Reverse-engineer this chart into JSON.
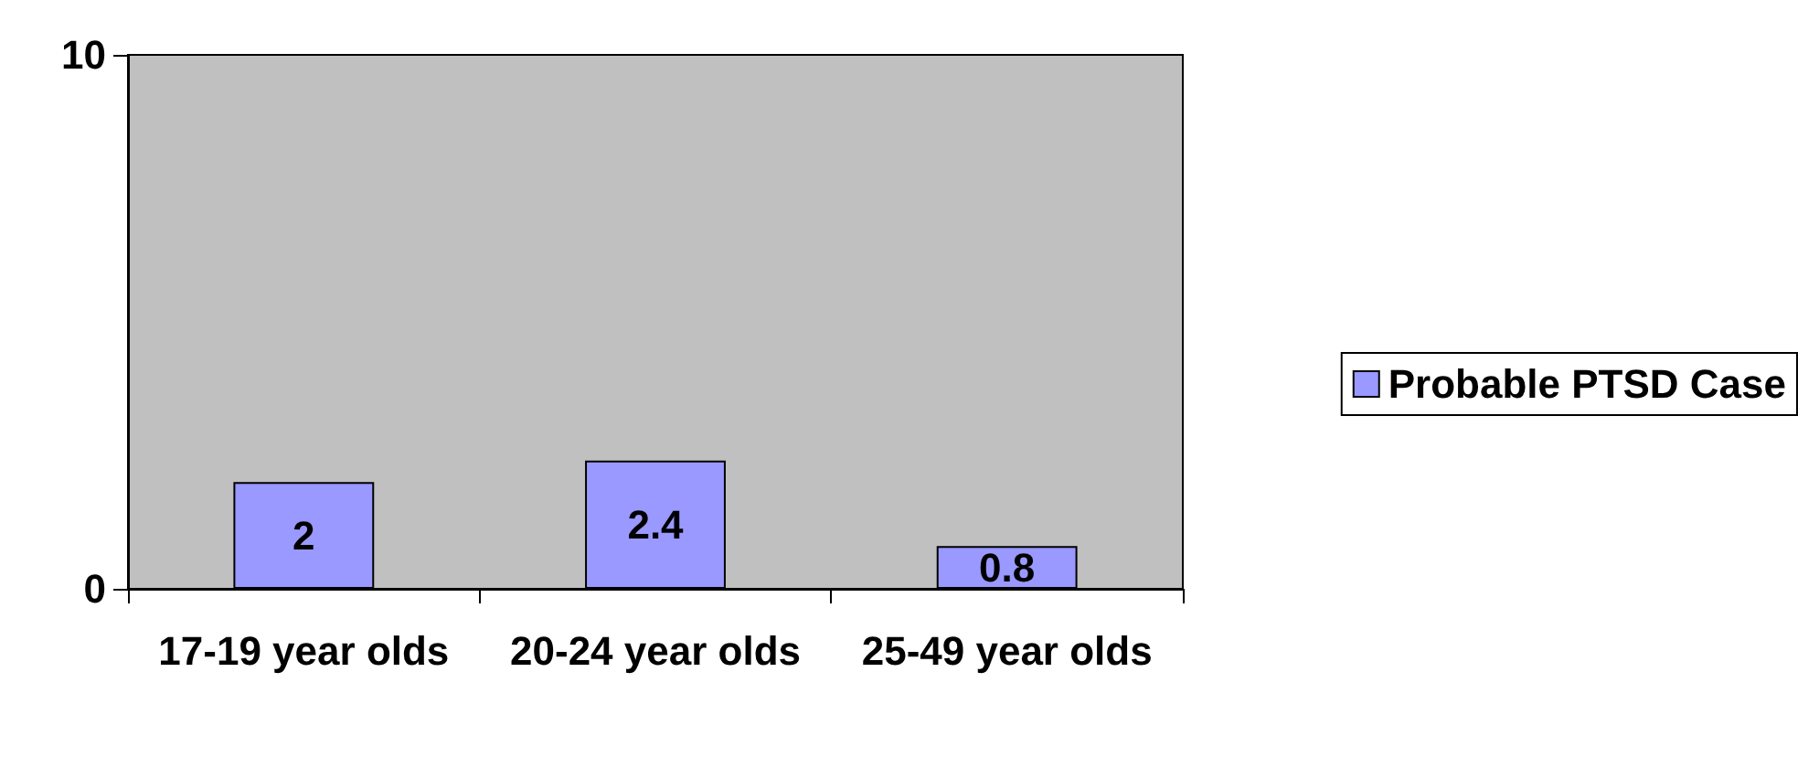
{
  "chart_data": {
    "type": "bar",
    "categories": [
      "17-19 year olds",
      "20-24 year olds",
      "25-49 year olds"
    ],
    "series": [
      {
        "name": "Probable PTSD Case",
        "color": "#9999ff",
        "values": [
          2,
          2.4,
          0.8
        ]
      }
    ],
    "ylim": [
      0,
      10
    ],
    "yticks": [
      0,
      10
    ],
    "grid": false,
    "legend": "right",
    "data_labels": true
  }
}
